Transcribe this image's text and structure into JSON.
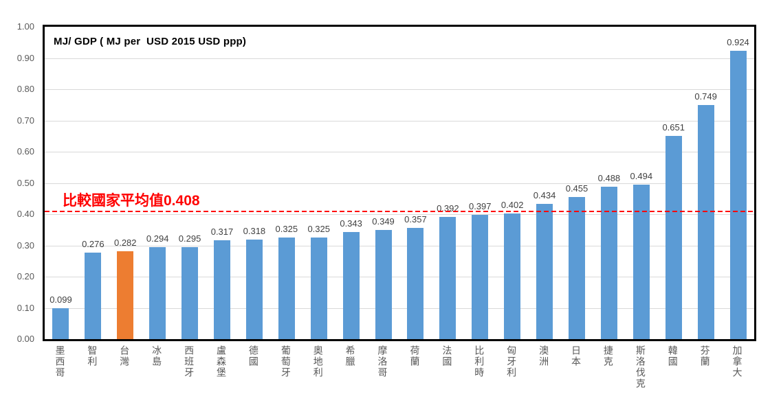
{
  "chart_data": {
    "type": "bar",
    "title": "MJ/ GDP ( MJ per  USD 2015 USD ppp)",
    "categories": [
      "墨西哥",
      "智利",
      "台灣",
      "冰島",
      "西班牙",
      "盧森堡",
      "德國",
      "葡萄牙",
      "奧地利",
      "希臘",
      "摩洛哥",
      "荷蘭",
      "法國",
      "比利時",
      "匈牙利",
      "澳洲",
      "日本",
      "捷克",
      "斯洛伐克",
      "韓國",
      "芬蘭",
      "加拿大"
    ],
    "values": [
      0.099,
      0.276,
      0.282,
      0.294,
      0.295,
      0.317,
      0.318,
      0.325,
      0.325,
      0.343,
      0.349,
      0.357,
      0.392,
      0.397,
      0.402,
      0.434,
      0.455,
      0.488,
      0.494,
      0.651,
      0.749,
      0.924
    ],
    "value_label_decimals": 3,
    "highlight_category": "台灣",
    "highlight_index": 2,
    "bar_color": "#5b9bd5",
    "highlight_color": "#ed7d31",
    "average_line": {
      "value": 0.408,
      "label": "比較國家平均值0.408",
      "color": "#ff0000",
      "style": "dashed"
    },
    "ylim": [
      0,
      1.0
    ],
    "ytick_labels": [
      "0.00",
      "0.10",
      "0.20",
      "0.30",
      "0.40",
      "0.50",
      "0.60",
      "0.70",
      "0.80",
      "0.90",
      "1.00"
    ],
    "grid": true,
    "legend": "none",
    "xlabel": "",
    "ylabel": ""
  }
}
